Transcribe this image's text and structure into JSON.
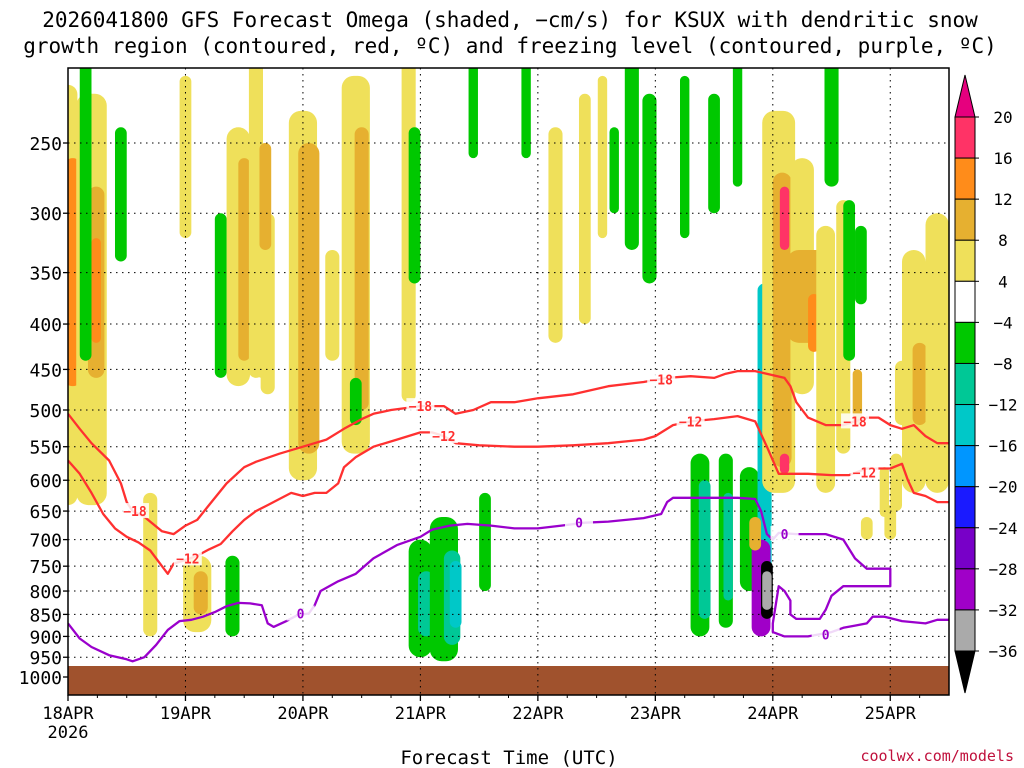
{
  "chart_data": {
    "type": "heatmap",
    "title_line1": "2026041800 GFS Forecast Omega (shaded, −cm/s) for KSUX with dendritic snow",
    "title_line2": "growth region (contoured, red, ºC) and freezing level (contoured, purple, ºC)",
    "xlabel": "Forecast Time (UTC)",
    "credit": "coolwx.com/models",
    "x_ticks": [
      "18APR",
      "19APR",
      "20APR",
      "21APR",
      "22APR",
      "23APR",
      "24APR",
      "25APR"
    ],
    "x_year": "2026",
    "y_ticks": [
      250,
      300,
      350,
      400,
      450,
      500,
      550,
      600,
      650,
      700,
      750,
      800,
      850,
      900,
      950,
      1000
    ],
    "y_scale": "log",
    "ylim": [
      200,
      1020
    ],
    "xlim": [
      0,
      7.5
    ],
    "grid": true,
    "colorbar": {
      "labels": [
        "20",
        "16",
        "12",
        "8",
        "4",
        "−4",
        "−8",
        "−12",
        "−16",
        "−20",
        "−24",
        "−28",
        "−32",
        "−36"
      ],
      "colors": [
        "#ff3366",
        "#ff8c1a",
        "#e6b030",
        "#efe05a",
        "#ffffff",
        "#00c800",
        "#00c896",
        "#00c8c8",
        "#0096ff",
        "#1a1aff",
        "#7800c8",
        "#a000c8",
        "#aaaaaa",
        "#000000"
      ],
      "top_color": "#e6007e",
      "bottom_color": "#000000"
    },
    "contour_labels": {
      "dgz_upper": "−18",
      "dgz_lower": "−12",
      "freezing": "0"
    },
    "contours": {
      "dgz_upper": {
        "color": "#ff3030",
        "points": [
          [
            0,
            505
          ],
          [
            0.1,
            525
          ],
          [
            0.2,
            545
          ],
          [
            0.35,
            570
          ],
          [
            0.45,
            605
          ],
          [
            0.5,
            635
          ],
          [
            0.55,
            650
          ],
          [
            0.65,
            660
          ],
          [
            0.8,
            685
          ],
          [
            0.9,
            690
          ],
          [
            1.0,
            675
          ],
          [
            1.1,
            665
          ],
          [
            1.2,
            640
          ],
          [
            1.35,
            605
          ],
          [
            1.5,
            580
          ],
          [
            1.6,
            572
          ],
          [
            1.8,
            560
          ],
          [
            2.0,
            550
          ],
          [
            2.2,
            540
          ],
          [
            2.35,
            525
          ],
          [
            2.5,
            512
          ],
          [
            2.6,
            505
          ],
          [
            2.75,
            500
          ],
          [
            3.0,
            495
          ],
          [
            3.2,
            495
          ],
          [
            3.3,
            505
          ],
          [
            3.45,
            500
          ],
          [
            3.6,
            490
          ],
          [
            3.8,
            490
          ],
          [
            4.0,
            485
          ],
          [
            4.3,
            480
          ],
          [
            4.6,
            470
          ],
          [
            4.9,
            465
          ],
          [
            5.1,
            460
          ],
          [
            5.3,
            458
          ],
          [
            5.5,
            460
          ],
          [
            5.6,
            455
          ],
          [
            5.7,
            452
          ],
          [
            5.85,
            452
          ],
          [
            6.1,
            460
          ],
          [
            6.15,
            470
          ],
          [
            6.2,
            490
          ],
          [
            6.3,
            510
          ],
          [
            6.45,
            520
          ],
          [
            6.6,
            520
          ],
          [
            6.8,
            510
          ],
          [
            6.9,
            510
          ],
          [
            7.0,
            520
          ],
          [
            7.1,
            525
          ],
          [
            7.2,
            520
          ],
          [
            7.3,
            535
          ],
          [
            7.4,
            545
          ],
          [
            7.5,
            545
          ]
        ]
      },
      "dgz_lower": {
        "color": "#ff3030",
        "points": [
          [
            0,
            570
          ],
          [
            0.1,
            590
          ],
          [
            0.2,
            620
          ],
          [
            0.3,
            655
          ],
          [
            0.4,
            680
          ],
          [
            0.5,
            695
          ],
          [
            0.6,
            705
          ],
          [
            0.7,
            720
          ],
          [
            0.8,
            750
          ],
          [
            0.85,
            765
          ],
          [
            0.9,
            745
          ],
          [
            1.0,
            738
          ],
          [
            1.1,
            730
          ],
          [
            1.2,
            718
          ],
          [
            1.3,
            708
          ],
          [
            1.4,
            685
          ],
          [
            1.5,
            665
          ],
          [
            1.6,
            650
          ],
          [
            1.7,
            640
          ],
          [
            1.8,
            630
          ],
          [
            1.9,
            620
          ],
          [
            2.0,
            625
          ],
          [
            2.1,
            620
          ],
          [
            2.2,
            620
          ],
          [
            2.3,
            605
          ],
          [
            2.35,
            580
          ],
          [
            2.45,
            565
          ],
          [
            2.6,
            550
          ],
          [
            2.8,
            540
          ],
          [
            3.0,
            530
          ],
          [
            3.1,
            530
          ],
          [
            3.2,
            535
          ],
          [
            3.3,
            545
          ],
          [
            3.5,
            548
          ],
          [
            3.8,
            550
          ],
          [
            4.0,
            550
          ],
          [
            4.3,
            548
          ],
          [
            4.6,
            545
          ],
          [
            4.9,
            540
          ],
          [
            5.0,
            535
          ],
          [
            5.15,
            520
          ],
          [
            5.3,
            515
          ],
          [
            5.5,
            512
          ],
          [
            5.6,
            510
          ],
          [
            5.7,
            508
          ],
          [
            5.85,
            515
          ],
          [
            5.95,
            550
          ],
          [
            6.05,
            590
          ],
          [
            6.15,
            590
          ],
          [
            6.3,
            590
          ],
          [
            6.5,
            592
          ],
          [
            6.65,
            592
          ],
          [
            6.8,
            582
          ],
          [
            7.0,
            582
          ],
          [
            7.1,
            575
          ],
          [
            7.15,
            600
          ],
          [
            7.2,
            620
          ],
          [
            7.3,
            625
          ],
          [
            7.4,
            635
          ],
          [
            7.5,
            635
          ]
        ]
      },
      "freezing": {
        "color": "#9a00cc",
        "points": [
          [
            0,
            870
          ],
          [
            0.1,
            905
          ],
          [
            0.2,
            925
          ],
          [
            0.35,
            945
          ],
          [
            0.5,
            955
          ],
          [
            0.55,
            960
          ],
          [
            0.65,
            950
          ],
          [
            0.75,
            920
          ],
          [
            0.85,
            885
          ],
          [
            0.95,
            865
          ],
          [
            1.05,
            862
          ],
          [
            1.15,
            855
          ],
          [
            1.25,
            845
          ],
          [
            1.35,
            832
          ],
          [
            1.45,
            825
          ],
          [
            1.55,
            826
          ],
          [
            1.65,
            830
          ],
          [
            1.7,
            870
          ],
          [
            1.75,
            878
          ],
          [
            1.85,
            866
          ],
          [
            1.95,
            852
          ],
          [
            2.05,
            848
          ],
          [
            2.1,
            830
          ],
          [
            2.15,
            800
          ],
          [
            2.3,
            780
          ],
          [
            2.45,
            765
          ],
          [
            2.6,
            735
          ],
          [
            2.8,
            710
          ],
          [
            3.0,
            695
          ],
          [
            3.1,
            682
          ],
          [
            3.25,
            675
          ],
          [
            3.4,
            672
          ],
          [
            3.6,
            675
          ],
          [
            3.8,
            680
          ],
          [
            4.0,
            680
          ],
          [
            4.2,
            675
          ],
          [
            4.4,
            670
          ],
          [
            4.6,
            668
          ],
          [
            4.9,
            662
          ],
          [
            5.05,
            655
          ],
          [
            5.1,
            635
          ],
          [
            5.15,
            628
          ],
          [
            5.3,
            628
          ],
          [
            5.5,
            628
          ],
          [
            5.7,
            628
          ],
          [
            5.85,
            630
          ],
          [
            5.9,
            650
          ],
          [
            5.95,
            690
          ],
          [
            6.0,
            700
          ],
          [
            6.05,
            688
          ],
          [
            6.2,
            690
          ],
          [
            6.45,
            690
          ],
          [
            6.6,
            700
          ],
          [
            6.7,
            735
          ],
          [
            6.8,
            755
          ],
          [
            7.0,
            755
          ],
          [
            7.0,
            790
          ],
          [
            6.8,
            790
          ],
          [
            6.6,
            790
          ],
          [
            6.5,
            810
          ],
          [
            6.45,
            840
          ],
          [
            6.4,
            860
          ],
          [
            6.2,
            860
          ],
          [
            6.15,
            850
          ],
          [
            6.15,
            820
          ],
          [
            6.1,
            800
          ],
          [
            6.05,
            790
          ],
          [
            6.0,
            870
          ],
          [
            6.0,
            890
          ],
          [
            6.1,
            900
          ],
          [
            6.3,
            900
          ],
          [
            6.5,
            890
          ],
          [
            6.6,
            880
          ],
          [
            6.7,
            875
          ],
          [
            6.8,
            870
          ],
          [
            6.85,
            855
          ],
          [
            6.95,
            855
          ],
          [
            7.1,
            865
          ],
          [
            7.3,
            870
          ],
          [
            7.4,
            862
          ],
          [
            7.5,
            862
          ]
        ]
      }
    }
  }
}
